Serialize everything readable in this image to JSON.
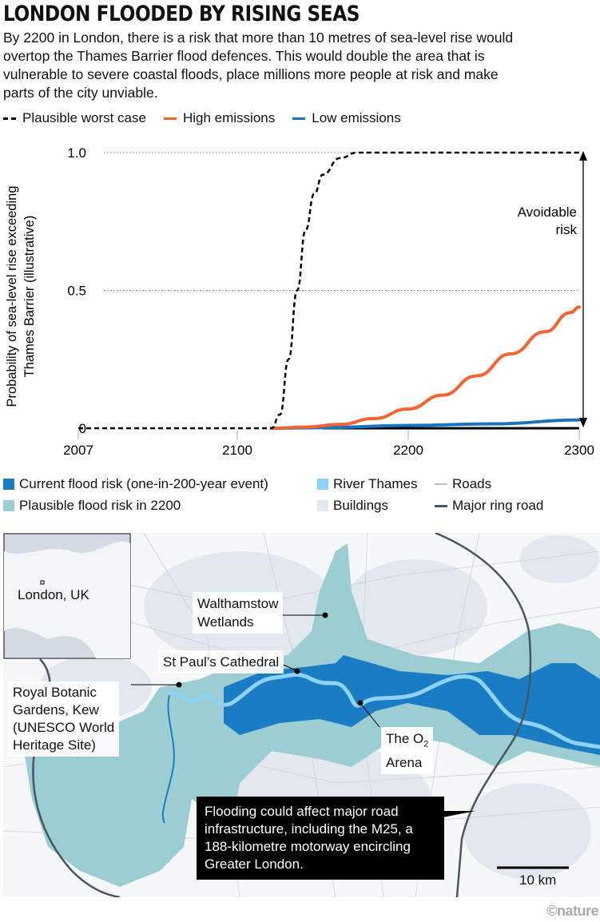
{
  "title": "LONDON FLOODED BY RISING SEAS",
  "intro": "By 2200 in London, there is a risk that more than 10 metres of sea-level rise would overtop the Thames Barrier flood defences. This would double the area that is vulnerable to severe coastal floods, place millions more people at risk and make parts of the city unviable.",
  "legend": [
    {
      "label": "Plausible worst case",
      "color": "#000000",
      "style": "dashed"
    },
    {
      "label": "High emissions",
      "color": "#f26430",
      "style": "solid"
    },
    {
      "label": "Low emissions",
      "color": "#1a73c0",
      "style": "solid"
    }
  ],
  "chart_data": {
    "type": "line",
    "ylabel": "Probability of sea-level rise exceeding Thames Barrier (illustrative)",
    "ylabel_lines": [
      "Probability of sea-level rise exceeding",
      "Thames Barrier (illustrative)"
    ],
    "xlim": [
      2007,
      2300
    ],
    "ylim": [
      0,
      1
    ],
    "xticks": [
      "2007",
      "2100",
      "2200",
      "2300"
    ],
    "yticks": [
      "0",
      "0.5",
      "1.0"
    ],
    "grid": "dotted at 0.5 and 1.0",
    "annotation": [
      "Avoidable",
      "risk"
    ],
    "series": [
      {
        "name": "Plausible worst case",
        "color": "#000000",
        "dashed": true,
        "x": [
          2007,
          2120,
          2125,
          2130,
          2135,
          2140,
          2145,
          2150,
          2160,
          2170,
          2300
        ],
        "y": [
          0,
          0,
          0.05,
          0.25,
          0.5,
          0.72,
          0.85,
          0.92,
          0.98,
          1.0,
          1.0
        ]
      },
      {
        "name": "High emissions",
        "color": "#f26430",
        "x": [
          2120,
          2140,
          2160,
          2180,
          2200,
          2220,
          2240,
          2260,
          2280,
          2295,
          2300
        ],
        "y": [
          0,
          0.004,
          0.014,
          0.035,
          0.07,
          0.12,
          0.19,
          0.27,
          0.35,
          0.42,
          0.44
        ]
      },
      {
        "name": "Low emissions",
        "color": "#1a73c0",
        "x": [
          2120,
          2150,
          2200,
          2250,
          2300
        ],
        "y": [
          0,
          0.002,
          0.01,
          0.016,
          0.03
        ]
      }
    ]
  },
  "map_legend": {
    "current": {
      "label": "Current flood risk (one-in-200-year event)",
      "color": "#1a7dc4"
    },
    "plausible": {
      "label": "Plausible flood risk in 2200",
      "color": "#9ccdd2"
    },
    "river": {
      "label": "River Thames",
      "color": "#8fd3f4"
    },
    "buildings": {
      "label": "Buildings",
      "color": "#e3e8ee"
    },
    "roads": {
      "label": "Roads",
      "color": "#b8c2cc"
    },
    "ring": {
      "label": "Major ring road",
      "color": "#4a5563"
    }
  },
  "map": {
    "inset_label": "London, UK",
    "labels": {
      "walthamstow": [
        "Walthamstow",
        "Wetlands"
      ],
      "stpauls": "St Paul’s Cathedral",
      "kew": [
        "Royal Botanic",
        "Gardens, Kew",
        "(UNESCO World",
        "Heritage Site)"
      ],
      "o2": {
        "main": "The O",
        "sub": "2",
        "line2": "Arena"
      }
    },
    "callout": "Flooding could affect major road infrastructure, including the M25, a 188-kilometre motorway encircling Greater London.",
    "scale": "10 km"
  },
  "credit": "©nature"
}
